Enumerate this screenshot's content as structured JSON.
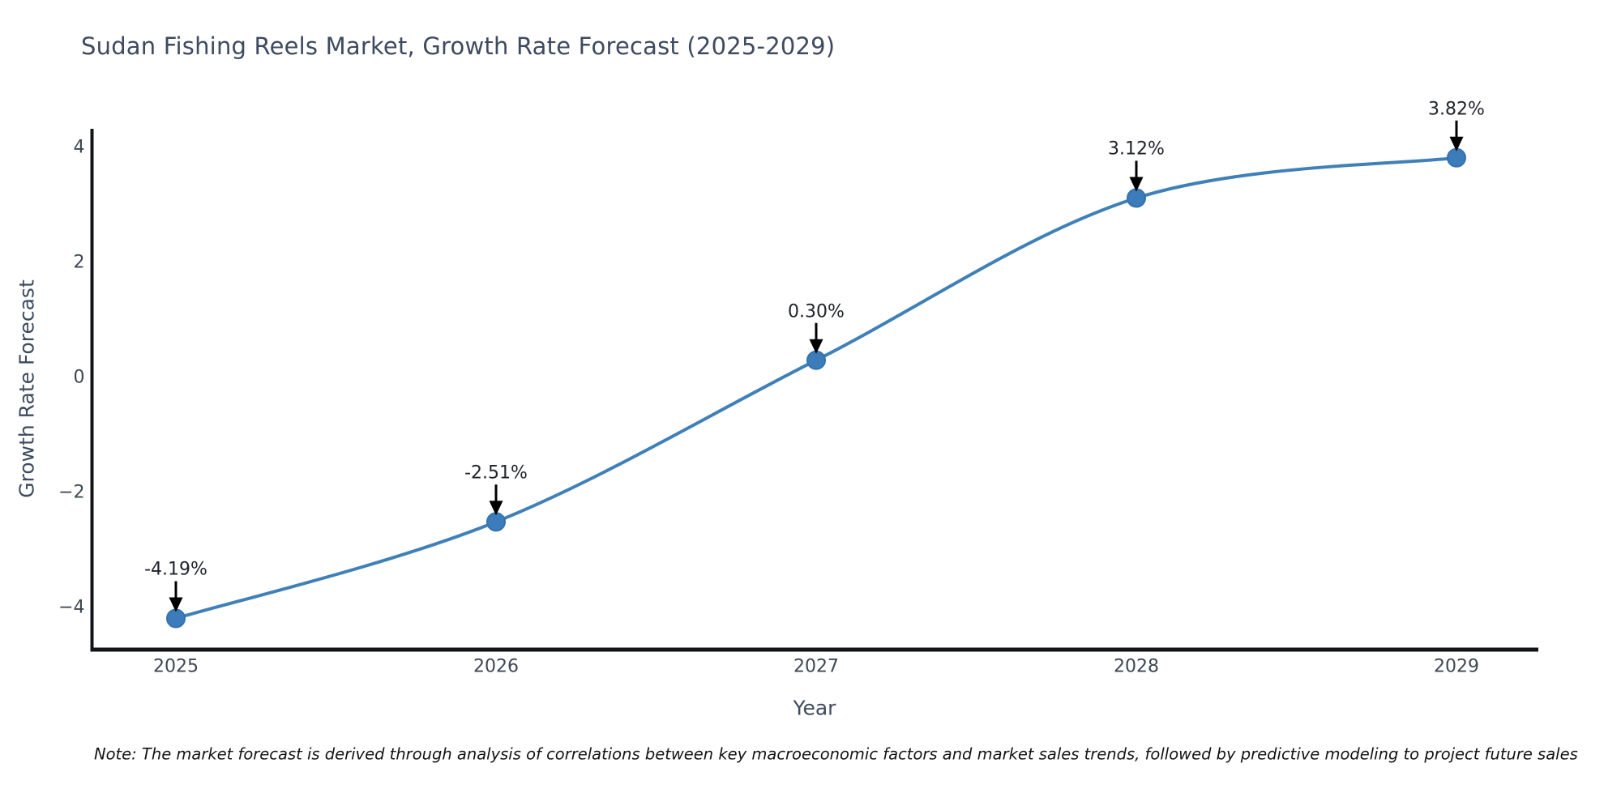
{
  "title": "Sudan Fishing Reels Market, Growth Rate Forecast (2025-2029)",
  "note": "Note: The market forecast is derived through analysis of correlations between key macroeconomic factors and market sales trends, followed by predictive modeling to project future sales",
  "chart_data": {
    "type": "line",
    "title": "Sudan Fishing Reels Market, Growth Rate Forecast (2025-2029)",
    "xlabel": "Year",
    "ylabel": "Growth Rate Forecast",
    "x": [
      2025,
      2026,
      2027,
      2028,
      2029
    ],
    "x_tick_labels": [
      "2025",
      "2026",
      "2027",
      "2028",
      "2029"
    ],
    "series": [
      {
        "name": "Growth Rate Forecast",
        "values": [
          -4.19,
          -2.51,
          0.3,
          3.12,
          3.82
        ],
        "point_labels": [
          "-4.19%",
          "-2.51%",
          "0.30%",
          "3.12%",
          "3.82%"
        ]
      }
    ],
    "yticks": [
      4,
      2,
      0,
      -2,
      -4
    ],
    "ytick_labels": [
      "4",
      "2",
      "0",
      "−2",
      "−4"
    ],
    "ylim": [
      -4.73,
      4.32
    ],
    "grid": false,
    "legend": "none",
    "smooth": true,
    "line_color": "#4080b8",
    "marker_color": "#3c7cba",
    "marker_edge_color": "#3372ad",
    "axis_color": "#111418",
    "annotation_arrow_color": "#000000"
  }
}
